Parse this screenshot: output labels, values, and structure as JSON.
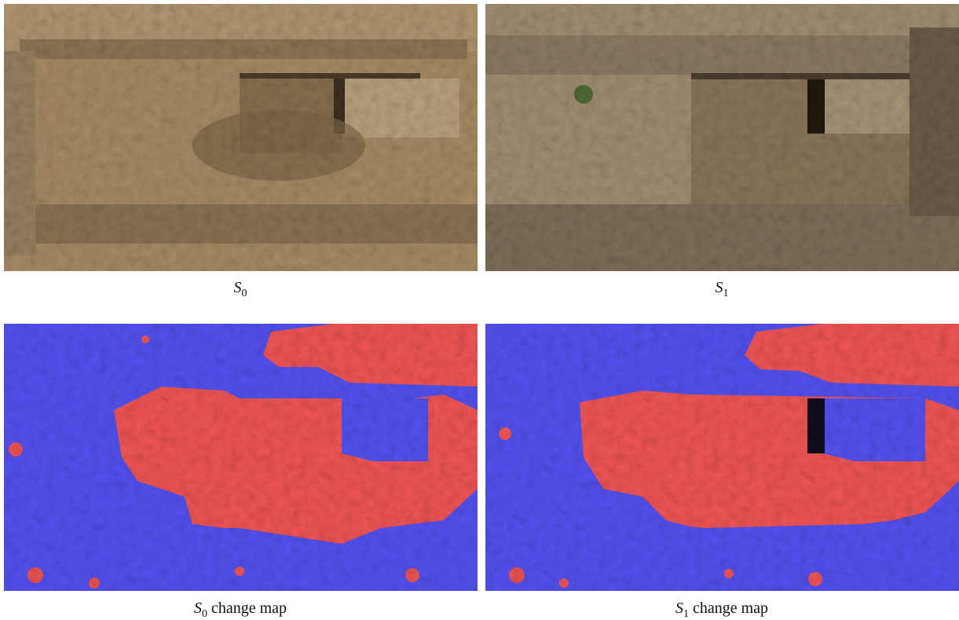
{
  "figure": {
    "panels": [
      {
        "caption": {
          "symbol": "S",
          "subscript": "0"
        }
      },
      {
        "caption": {
          "symbol": "S",
          "subscript": "1"
        }
      },
      {
        "caption": {
          "symbol": "S",
          "subscript": "0",
          "text": "change map"
        }
      },
      {
        "caption": {
          "symbol": "S",
          "subscript": "1",
          "text": "change map"
        }
      }
    ]
  }
}
